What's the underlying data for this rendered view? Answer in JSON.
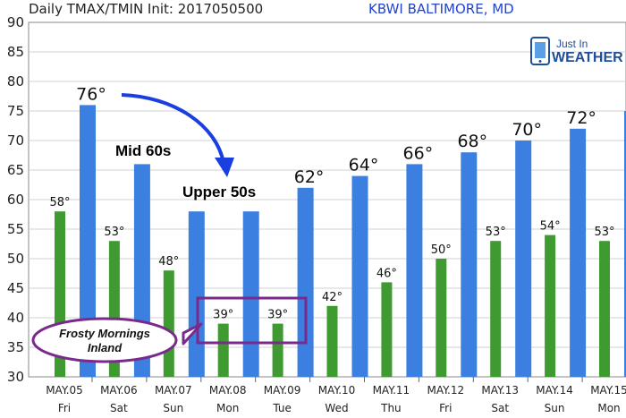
{
  "header": {
    "title": "Daily TMAX/TMIN Init: 2017050500",
    "station": "KBWI BALTIMORE, MD"
  },
  "logo": {
    "line1": "Just In",
    "line2": "WEATHER",
    "icon": "phone-icon"
  },
  "annotations": {
    "mid": "Mid 60s",
    "upper": "Upper 50s",
    "frost_line1": "Frosty Mornings",
    "frost_line2": "Inland"
  },
  "colors": {
    "tmax": "#3b7fe0",
    "tmin": "#3e9a31",
    "arrow": "#1a3fe0",
    "highlight": "#7a2a8c"
  },
  "chart_data": {
    "type": "bar",
    "title": "Daily TMAX/TMIN Init: 2017050500",
    "categories": [
      "MAY.05",
      "MAY.06",
      "MAY.07",
      "MAY.08",
      "MAY.09",
      "MAY.10",
      "MAY.11",
      "MAY.12",
      "MAY.13",
      "MAY.14",
      "MAY.15"
    ],
    "days": [
      "Fri",
      "Sat",
      "Sun",
      "Mon",
      "Tue",
      "Wed",
      "Thu",
      "Fri",
      "Sat",
      "Sun",
      "Mon"
    ],
    "series": [
      {
        "name": "TMIN",
        "values": [
          58,
          53,
          48,
          39,
          39,
          42,
          46,
          50,
          53,
          54,
          53
        ],
        "labels": [
          "58°",
          "53°",
          "48°",
          "39°",
          "39°",
          "42°",
          "46°",
          "50°",
          "53°",
          "54°",
          "53°"
        ]
      },
      {
        "name": "TMAX",
        "values": [
          76,
          66,
          58,
          58,
          62,
          64,
          66,
          68,
          70,
          72,
          75
        ],
        "labels": [
          "76°",
          "",
          "",
          "",
          "62°",
          "64°",
          "66°",
          "68°",
          "70°",
          "72°",
          ""
        ]
      }
    ],
    "ylim": [
      30,
      90
    ],
    "yticks": [
      "90",
      "85",
      "80",
      "75",
      "70",
      "65",
      "60",
      "55",
      "50",
      "45",
      "40",
      "35",
      "30"
    ],
    "grid": true
  }
}
